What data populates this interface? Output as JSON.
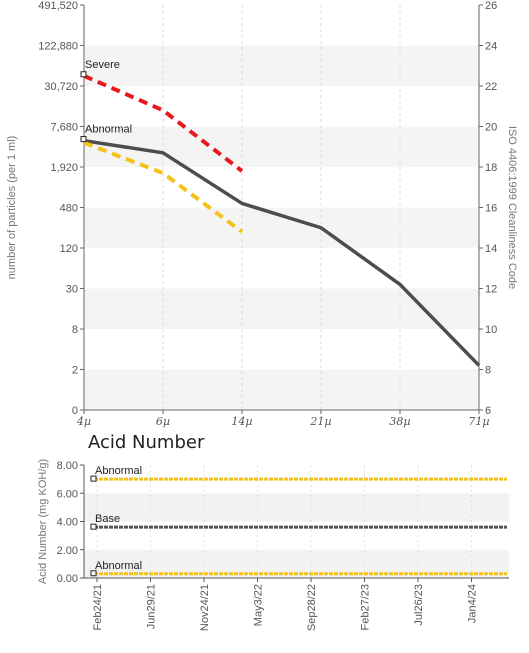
{
  "chart_data": [
    {
      "type": "line",
      "title": "",
      "ylabel": "number of particles (per 1 ml)",
      "y2label": "ISO 4406:1999 Cleanliness Code",
      "categories": [
        "4µ",
        "6µ",
        "14µ",
        "21µ",
        "38µ",
        "71µ"
      ],
      "y_scale": "log2",
      "yticks": [
        "0",
        "2",
        "8",
        "30",
        "120",
        "480",
        "1,920",
        "7,680",
        "30,720",
        "122,880",
        "491,520"
      ],
      "y2ticks": [
        "6",
        "8",
        "10",
        "12",
        "14",
        "16",
        "18",
        "20",
        "22",
        "24",
        "26"
      ],
      "ylim_code": [
        6,
        26
      ],
      "grid": "banded",
      "series": [
        {
          "id": "measured",
          "color": "#4d4d4d",
          "style": "solid",
          "x": [
            "4µ",
            "6µ",
            "14µ",
            "21µ",
            "38µ",
            "71µ"
          ],
          "values_code": [
            19.3,
            18.7,
            16.2,
            15.0,
            12.2,
            8.2
          ]
        },
        {
          "id": "severe-limit",
          "color": "#e8191e",
          "style": "dashed",
          "x": [
            "4µ",
            "6µ",
            "14µ"
          ],
          "values_code": [
            22.5,
            20.8,
            17.8
          ]
        },
        {
          "id": "abnormal-limit",
          "color": "#f5c21b",
          "style": "dashed",
          "x": [
            "4µ",
            "6µ",
            "14µ"
          ],
          "values_code": [
            19.2,
            17.7,
            14.8
          ]
        }
      ],
      "annotations": [
        {
          "text": "Severe",
          "code": 22.9
        },
        {
          "text": "Abnormal",
          "code": 19.7
        }
      ]
    },
    {
      "type": "line",
      "title": "Acid Number",
      "ylabel": "Acid Number (mg KOH/g)",
      "yticks": [
        "0.00",
        "2.00",
        "4.00",
        "6.00",
        "8.00"
      ],
      "ylim": [
        0,
        8
      ],
      "xticks": [
        "Feb24/21",
        "Jun29/21",
        "Nov24/21",
        "May3/22",
        "Sep28/22",
        "Feb27/23",
        "Jul26/23",
        "Jan4/24"
      ],
      "grid": "banded",
      "series": [
        {
          "id": "upper-abnormal",
          "color": "#f5c21b",
          "value": 7.0
        },
        {
          "id": "base",
          "color": "#555555",
          "value": 3.6
        },
        {
          "id": "lower-abnormal",
          "color": "#f5c21b",
          "value": 0.3
        }
      ],
      "annotations": [
        {
          "text": "Abnormal",
          "value": 7.0
        },
        {
          "text": "Base",
          "value": 3.6
        },
        {
          "text": "Abnormal",
          "value": 0.3
        }
      ]
    }
  ]
}
